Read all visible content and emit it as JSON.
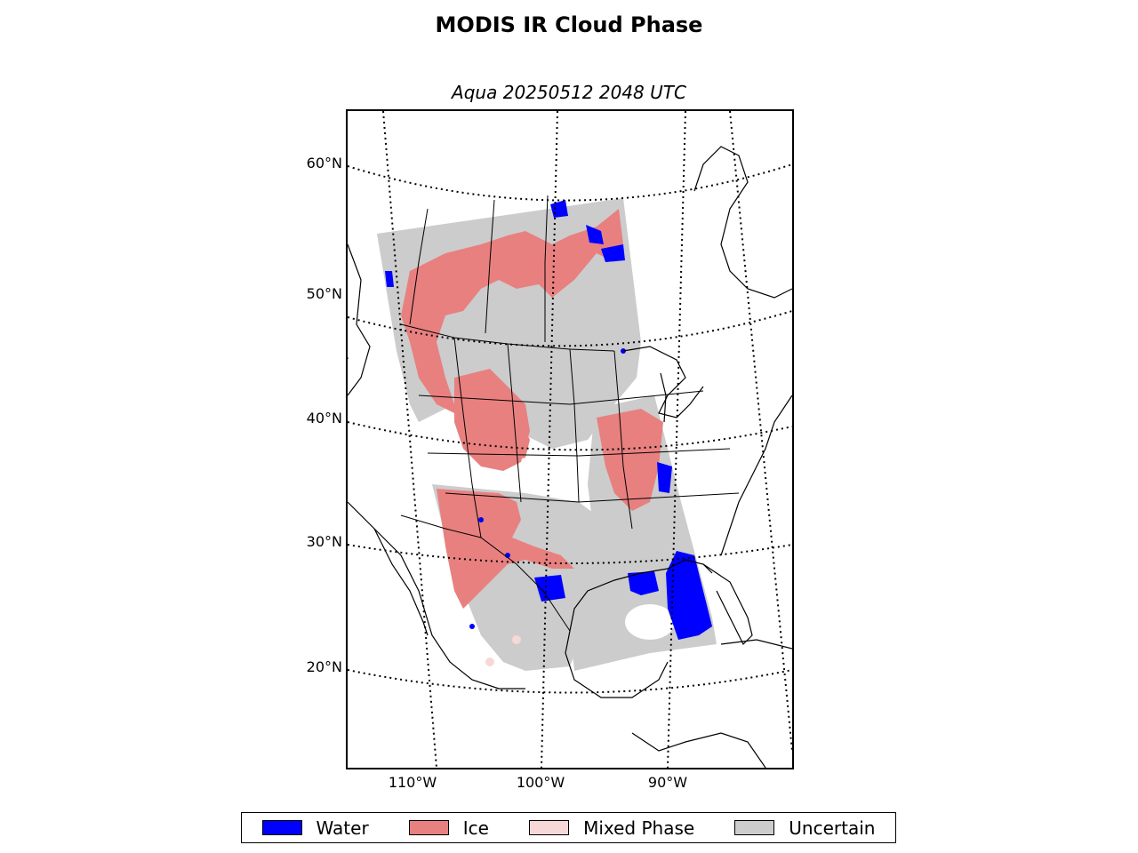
{
  "title": "MODIS IR Cloud Phase",
  "subtitle": "Aqua 20250512 2048 UTC",
  "lat_labels": [
    "60°N",
    "50°N",
    "40°N",
    "30°N",
    "20°N"
  ],
  "lon_labels": [
    "110°W",
    "100°W",
    "90°W"
  ],
  "legend": [
    {
      "label": "Water",
      "color": "#0000ff"
    },
    {
      "label": "Ice",
      "color": "#e88080"
    },
    {
      "label": "Mixed Phase",
      "color": "#f7d8d8"
    },
    {
      "label": "Uncertain",
      "color": "#cccccc"
    }
  ],
  "colors": {
    "water": "#0000ff",
    "ice": "#e88080",
    "mixed": "#f7d8d8",
    "uncertain": "#cccccc",
    "coast": "#000000"
  }
}
